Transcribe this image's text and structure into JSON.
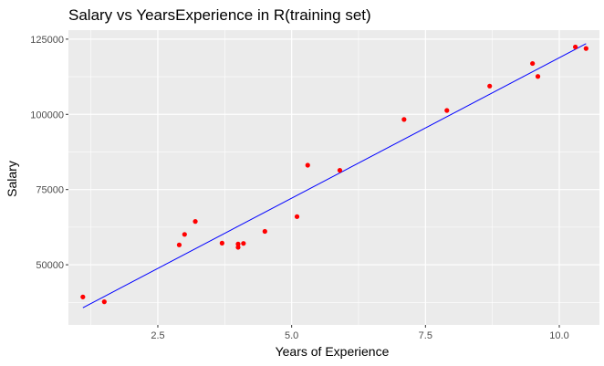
{
  "chart_data": {
    "type": "scatter",
    "title": "Salary vs YearsExperience in R(training set)",
    "xlabel": "Years of Experience",
    "ylabel": "Salary",
    "xlim": [
      0.83,
      10.75
    ],
    "ylim": [
      30000,
      128000
    ],
    "x_ticks": [
      2.5,
      5.0,
      7.5,
      10.0
    ],
    "x_tick_labels": [
      "2.5",
      "5.0",
      "7.5",
      "10.0"
    ],
    "y_ticks": [
      50000,
      75000,
      100000,
      125000
    ],
    "y_tick_labels": [
      "50000",
      "75000",
      "100000",
      "125000"
    ],
    "grid": true,
    "legend": "none",
    "colors": {
      "panel": "#ebebeb",
      "grid_major": "#ffffff",
      "points": "#ff0000",
      "fit_line": "#0000ff"
    },
    "series": [
      {
        "kind": "points",
        "x": [
          1.1,
          1.5,
          2.9,
          3.0,
          3.2,
          3.7,
          4.0,
          4.0,
          4.1,
          4.5,
          5.1,
          5.3,
          5.9,
          7.1,
          7.9,
          8.7,
          9.5,
          9.6,
          10.3,
          10.5
        ],
        "y": [
          39300,
          37700,
          56600,
          60100,
          64400,
          57200,
          55800,
          56900,
          57100,
          61100,
          66000,
          83100,
          81400,
          98300,
          101300,
          109400,
          116900,
          112600,
          122400,
          121900
        ]
      },
      {
        "kind": "fit-line",
        "x": [
          1.1,
          10.5
        ],
        "y": [
          35700,
          123500
        ]
      }
    ]
  }
}
